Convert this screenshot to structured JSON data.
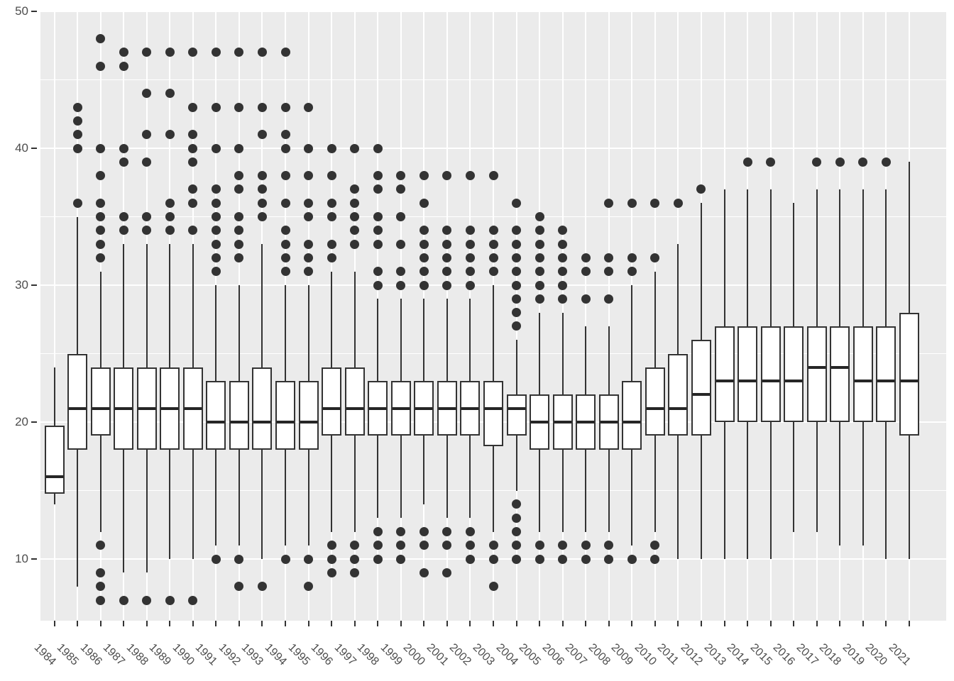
{
  "chart_data": {
    "type": "boxplot",
    "title": "",
    "xlabel": "",
    "ylabel": "",
    "legend": "none",
    "grid": "on",
    "y_axis": {
      "ticks": [
        10,
        20,
        30,
        40,
        50
      ],
      "minor_ticks": [
        15,
        25,
        35,
        45
      ],
      "ylim": [
        5.5,
        50.05
      ]
    },
    "categories": [
      "1984",
      "1985",
      "1986",
      "1987",
      "1988",
      "1989",
      "1990",
      "1991",
      "1992",
      "1993",
      "1994",
      "1995",
      "1996",
      "1997",
      "1998",
      "1999",
      "2000",
      "2001",
      "2002",
      "2003",
      "2004",
      "2005",
      "2006",
      "2007",
      "2008",
      "2009",
      "2010",
      "2011",
      "2012",
      "2013",
      "2014",
      "2015",
      "2016",
      "2017",
      "2018",
      "2019",
      "2020",
      "2021"
    ],
    "boxes": [
      {
        "year": "1984",
        "low": 14,
        "q1": 14.75,
        "median": 16,
        "q3": 19.75,
        "high": 24,
        "outliers_high": [],
        "outliers_low": []
      },
      {
        "year": "1985",
        "low": 8,
        "q1": 18,
        "median": 21,
        "q3": 25,
        "high": 35,
        "outliers_high": [
          36,
          40,
          41,
          42,
          43
        ],
        "outliers_low": []
      },
      {
        "year": "1986",
        "low": 12,
        "q1": 19,
        "median": 21,
        "q3": 24,
        "high": 31,
        "outliers_high": [
          32,
          33,
          34,
          35,
          36,
          38,
          40,
          46,
          48
        ],
        "outliers_low": [
          11,
          9,
          8,
          7
        ]
      },
      {
        "year": "1987",
        "low": 9,
        "q1": 18,
        "median": 21,
        "q3": 24,
        "high": 33,
        "outliers_high": [
          34,
          35,
          39,
          40,
          46,
          47
        ],
        "outliers_low": [
          7
        ]
      },
      {
        "year": "1988",
        "low": 9,
        "q1": 18,
        "median": 21,
        "q3": 24,
        "high": 33,
        "outliers_high": [
          34,
          35,
          39,
          41,
          44,
          47
        ],
        "outliers_low": [
          7
        ]
      },
      {
        "year": "1989",
        "low": 10,
        "q1": 18,
        "median": 21,
        "q3": 24,
        "high": 33,
        "outliers_high": [
          34,
          35,
          36,
          41,
          44,
          47
        ],
        "outliers_low": [
          7
        ]
      },
      {
        "year": "1990",
        "low": 10,
        "q1": 18,
        "median": 21,
        "q3": 24,
        "high": 33,
        "outliers_high": [
          34,
          36,
          37,
          39,
          40,
          41,
          43,
          47
        ],
        "outliers_low": [
          7
        ]
      },
      {
        "year": "1991",
        "low": 11,
        "q1": 18,
        "median": 20,
        "q3": 23,
        "high": 30,
        "outliers_high": [
          31,
          32,
          33,
          34,
          35,
          36,
          37,
          40,
          43,
          47
        ],
        "outliers_low": [
          10
        ]
      },
      {
        "year": "1992",
        "low": 11,
        "q1": 18,
        "median": 20,
        "q3": 23,
        "high": 30,
        "outliers_high": [
          32,
          33,
          34,
          35,
          37,
          38,
          40,
          43,
          47
        ],
        "outliers_low": [
          10,
          8
        ]
      },
      {
        "year": "1993",
        "low": 10,
        "q1": 18,
        "median": 20,
        "q3": 24,
        "high": 33,
        "outliers_high": [
          35,
          36,
          37,
          38,
          41,
          43,
          47
        ],
        "outliers_low": [
          8
        ]
      },
      {
        "year": "1994",
        "low": 11,
        "q1": 18,
        "median": 20,
        "q3": 23,
        "high": 30,
        "outliers_high": [
          31,
          32,
          33,
          34,
          36,
          38,
          40,
          41,
          43,
          47
        ],
        "outliers_low": [
          10
        ]
      },
      {
        "year": "1995",
        "low": 11,
        "q1": 18,
        "median": 20,
        "q3": 23,
        "high": 30,
        "outliers_high": [
          31,
          32,
          33,
          35,
          36,
          38,
          40,
          43
        ],
        "outliers_low": [
          10,
          8
        ]
      },
      {
        "year": "1996",
        "low": 12,
        "q1": 19,
        "median": 21,
        "q3": 24,
        "high": 31,
        "outliers_high": [
          32,
          33,
          35,
          36,
          38,
          40
        ],
        "outliers_low": [
          11,
          10,
          9
        ]
      },
      {
        "year": "1997",
        "low": 12,
        "q1": 19,
        "median": 21,
        "q3": 24,
        "high": 31,
        "outliers_high": [
          33,
          34,
          35,
          36,
          37,
          40
        ],
        "outliers_low": [
          11,
          10,
          9
        ]
      },
      {
        "year": "1998",
        "low": 13,
        "q1": 19,
        "median": 21,
        "q3": 23,
        "high": 29,
        "outliers_high": [
          30,
          31,
          33,
          34,
          35,
          37,
          38,
          40
        ],
        "outliers_low": [
          12,
          11,
          10
        ]
      },
      {
        "year": "1999",
        "low": 13,
        "q1": 19,
        "median": 21,
        "q3": 23,
        "high": 29,
        "outliers_high": [
          30,
          31,
          33,
          35,
          37,
          38
        ],
        "outliers_low": [
          12,
          11,
          10
        ]
      },
      {
        "year": "2000",
        "low": 14,
        "q1": 19,
        "median": 21,
        "q3": 23,
        "high": 29,
        "outliers_high": [
          30,
          31,
          32,
          33,
          34,
          36,
          38
        ],
        "outliers_low": [
          12,
          11,
          9
        ]
      },
      {
        "year": "2001",
        "low": 13,
        "q1": 19,
        "median": 21,
        "q3": 23,
        "high": 29,
        "outliers_high": [
          30,
          31,
          32,
          33,
          34,
          38
        ],
        "outliers_low": [
          12,
          11,
          9
        ]
      },
      {
        "year": "2002",
        "low": 13,
        "q1": 19,
        "median": 21,
        "q3": 23,
        "high": 29,
        "outliers_high": [
          30,
          31,
          32,
          33,
          34,
          38
        ],
        "outliers_low": [
          12,
          11,
          10
        ]
      },
      {
        "year": "2003",
        "low": 12,
        "q1": 18.25,
        "median": 21,
        "q3": 23,
        "high": 30,
        "outliers_high": [
          31,
          32,
          33,
          34,
          38
        ],
        "outliers_low": [
          11,
          10,
          8
        ]
      },
      {
        "year": "2004",
        "low": 15,
        "q1": 19,
        "median": 21,
        "q3": 22,
        "high": 26,
        "outliers_high": [
          27,
          28,
          29,
          30,
          31,
          32,
          33,
          34,
          36
        ],
        "outliers_low": [
          14,
          13,
          12,
          11,
          10
        ]
      },
      {
        "year": "2005",
        "low": 12,
        "q1": 18,
        "median": 20,
        "q3": 22,
        "high": 28,
        "outliers_high": [
          29,
          30,
          31,
          32,
          33,
          34,
          35
        ],
        "outliers_low": [
          11,
          10
        ]
      },
      {
        "year": "2006",
        "low": 12,
        "q1": 18,
        "median": 20,
        "q3": 22,
        "high": 28,
        "outliers_high": [
          29,
          30,
          31,
          32,
          33,
          34
        ],
        "outliers_low": [
          11,
          10
        ]
      },
      {
        "year": "2007",
        "low": 12,
        "q1": 18,
        "median": 20,
        "q3": 22,
        "high": 27,
        "outliers_high": [
          29,
          31,
          32
        ],
        "outliers_low": [
          11,
          10
        ]
      },
      {
        "year": "2008",
        "low": 12,
        "q1": 18,
        "median": 20,
        "q3": 22,
        "high": 27,
        "outliers_high": [
          29,
          31,
          32,
          36
        ],
        "outliers_low": [
          11,
          10
        ]
      },
      {
        "year": "2009",
        "low": 11,
        "q1": 18,
        "median": 20,
        "q3": 23,
        "high": 30,
        "outliers_high": [
          31,
          32,
          36
        ],
        "outliers_low": [
          10
        ]
      },
      {
        "year": "2010",
        "low": 12,
        "q1": 19,
        "median": 21,
        "q3": 24,
        "high": 31,
        "outliers_high": [
          32,
          36
        ],
        "outliers_low": [
          11,
          10
        ]
      },
      {
        "year": "2011",
        "low": 10,
        "q1": 19,
        "median": 21,
        "q3": 25,
        "high": 33,
        "outliers_high": [
          36
        ],
        "outliers_low": []
      },
      {
        "year": "2012",
        "low": 10,
        "q1": 19,
        "median": 22,
        "q3": 26,
        "high": 36,
        "outliers_high": [
          37
        ],
        "outliers_low": []
      },
      {
        "year": "2013",
        "low": 10,
        "q1": 20,
        "median": 23,
        "q3": 27,
        "high": 37,
        "outliers_high": [],
        "outliers_low": []
      },
      {
        "year": "2014",
        "low": 10,
        "q1": 20,
        "median": 23,
        "q3": 27,
        "high": 37,
        "outliers_high": [
          39
        ],
        "outliers_low": []
      },
      {
        "year": "2015",
        "low": 10,
        "q1": 20,
        "median": 23,
        "q3": 27,
        "high": 37,
        "outliers_high": [
          39
        ],
        "outliers_low": []
      },
      {
        "year": "2016",
        "low": 12,
        "q1": 20,
        "median": 23,
        "q3": 27,
        "high": 36,
        "outliers_high": [],
        "outliers_low": []
      },
      {
        "year": "2017",
        "low": 12,
        "q1": 20,
        "median": 24,
        "q3": 27,
        "high": 37,
        "outliers_high": [
          39
        ],
        "outliers_low": []
      },
      {
        "year": "2018",
        "low": 11,
        "q1": 20,
        "median": 24,
        "q3": 27,
        "high": 37,
        "outliers_high": [
          39
        ],
        "outliers_low": []
      },
      {
        "year": "2019",
        "low": 11,
        "q1": 20,
        "median": 23,
        "q3": 27,
        "high": 37,
        "outliers_high": [
          39
        ],
        "outliers_low": []
      },
      {
        "year": "2020",
        "low": 10,
        "q1": 20,
        "median": 23,
        "q3": 27,
        "high": 37,
        "outliers_high": [
          39
        ],
        "outliers_low": []
      },
      {
        "year": "2021",
        "low": 10,
        "q1": 19,
        "median": 23,
        "q3": 28,
        "high": 39,
        "outliers_high": [],
        "outliers_low": []
      }
    ],
    "colors": {
      "panel_background": "#EBEBEB",
      "gridline": "#FFFFFF",
      "box_stroke": "#333333",
      "box_fill": "#FFFFFF",
      "median": "#262626",
      "outlier": "#333333",
      "axis_text": "#4D4D4D",
      "tick_mark": "#333333",
      "page_background": "#FFFFFF"
    }
  }
}
